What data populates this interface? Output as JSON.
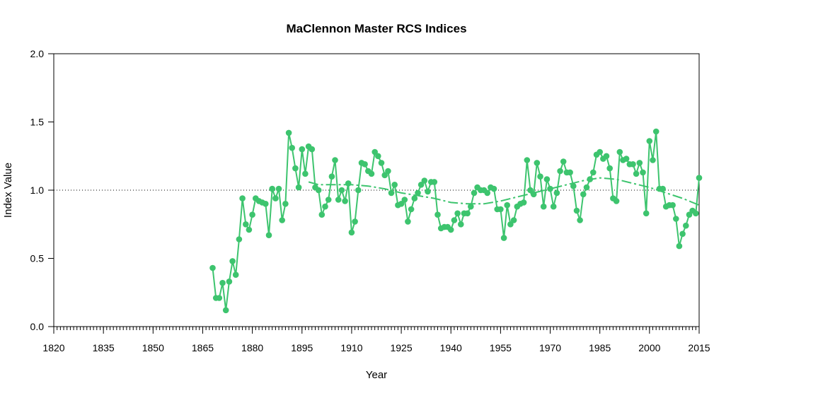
{
  "chart_data": {
    "type": "line",
    "title": "MaClennon Master RCS Indices",
    "xlabel": "Year",
    "ylabel": "Index Value",
    "xlim": [
      1820,
      2015
    ],
    "ylim": [
      0,
      2
    ],
    "x_ticks": [
      "1820",
      "1835",
      "1850",
      "1865",
      "1880",
      "1895",
      "1910",
      "1925",
      "1940",
      "1955",
      "1970",
      "1985",
      "2000",
      "2015"
    ],
    "y_ticks": [
      "0.0",
      "0.5",
      "1.0",
      "1.5",
      "2.0"
    ],
    "reference_line": 1.0,
    "grid": false,
    "colors": {
      "series": "#3dc46e"
    },
    "series": [
      {
        "kind": "index",
        "x": [
          1868,
          1869,
          1870,
          1871,
          1872,
          1873,
          1874,
          1875,
          1876,
          1877,
          1878,
          1879,
          1880,
          1881,
          1882,
          1883,
          1884,
          1885,
          1886,
          1887,
          1888,
          1889,
          1890,
          1891,
          1892,
          1893,
          1894,
          1895,
          1896,
          1897,
          1898,
          1899,
          1900,
          1901,
          1902,
          1903,
          1904,
          1905,
          1906,
          1907,
          1908,
          1909,
          1910,
          1911,
          1912,
          1913,
          1914,
          1915,
          1916,
          1917,
          1918,
          1919,
          1920,
          1921,
          1922,
          1923,
          1924,
          1925,
          1926,
          1927,
          1928,
          1929,
          1930,
          1931,
          1932,
          1933,
          1934,
          1935,
          1936,
          1937,
          1938,
          1939,
          1940,
          1941,
          1942,
          1943,
          1944,
          1945,
          1946,
          1947,
          1948,
          1949,
          1950,
          1951,
          1952,
          1953,
          1954,
          1955,
          1956,
          1957,
          1958,
          1959,
          1960,
          1961,
          1962,
          1963,
          1964,
          1965,
          1966,
          1967,
          1968,
          1969,
          1970,
          1971,
          1972,
          1973,
          1974,
          1975,
          1976,
          1977,
          1978,
          1979,
          1980,
          1981,
          1982,
          1983,
          1984,
          1985,
          1986,
          1987,
          1988,
          1989,
          1990,
          1991,
          1992,
          1993,
          1994,
          1995,
          1996,
          1997,
          1998,
          1999,
          2000,
          2001,
          2002,
          2003,
          2004,
          2005,
          2006,
          2007,
          2008,
          2009,
          2010,
          2011,
          2012,
          2013,
          2014,
          2015
        ],
        "y": [
          0.43,
          0.21,
          0.21,
          0.32,
          0.12,
          0.33,
          0.48,
          0.38,
          0.64,
          0.94,
          0.75,
          0.71,
          0.82,
          0.94,
          0.92,
          0.91,
          0.9,
          0.67,
          1.01,
          0.94,
          1.01,
          0.78,
          0.9,
          1.42,
          1.31,
          1.16,
          1.02,
          1.3,
          1.12,
          1.32,
          1.3,
          1.02,
          1.0,
          0.82,
          0.88,
          0.93,
          1.1,
          1.22,
          0.93,
          1.0,
          0.92,
          1.05,
          0.69,
          0.77,
          1.0,
          1.2,
          1.19,
          1.14,
          1.12,
          1.28,
          1.25,
          1.2,
          1.11,
          1.14,
          0.98,
          1.04,
          0.89,
          0.9,
          0.93,
          0.77,
          0.86,
          0.94,
          0.98,
          1.04,
          1.07,
          0.99,
          1.06,
          1.06,
          0.82,
          0.72,
          0.73,
          0.73,
          0.71,
          0.78,
          0.83,
          0.75,
          0.83,
          0.83,
          0.88,
          0.98,
          1.02,
          1.0,
          1.0,
          0.98,
          1.02,
          1.01,
          0.86,
          0.86,
          0.65,
          0.89,
          0.75,
          0.78,
          0.88,
          0.9,
          0.91,
          1.22,
          1.0,
          0.97,
          1.2,
          1.1,
          0.88,
          1.08,
          1.01,
          0.88,
          0.98,
          1.14,
          1.21,
          1.13,
          1.13,
          1.03,
          0.85,
          0.78,
          0.97,
          1.02,
          1.08,
          1.13,
          1.26,
          1.28,
          1.23,
          1.25,
          1.16,
          0.94,
          0.92,
          1.28,
          1.22,
          1.23,
          1.19,
          1.19,
          1.12,
          1.2,
          1.13,
          0.83,
          1.36,
          1.22,
          1.43,
          1.01,
          1.01,
          0.88,
          0.89,
          0.89,
          0.79,
          0.59,
          0.68,
          0.74,
          0.82,
          0.85,
          0.83,
          1.09
        ]
      },
      {
        "kind": "smoothing spline",
        "x": [
          1897,
          1900,
          1905,
          1910,
          1915,
          1920,
          1925,
          1930,
          1935,
          1940,
          1945,
          1950,
          1955,
          1960,
          1965,
          1970,
          1975,
          1980,
          1985,
          1990,
          1995,
          2000,
          2005,
          2010,
          2015
        ],
        "y": [
          1.06,
          1.04,
          1.04,
          1.04,
          1.03,
          1.01,
          0.98,
          0.96,
          0.94,
          0.91,
          0.9,
          0.9,
          0.92,
          0.95,
          0.98,
          1.01,
          1.04,
          1.07,
          1.09,
          1.08,
          1.05,
          1.02,
          0.98,
          0.94,
          0.89
        ]
      }
    ]
  }
}
